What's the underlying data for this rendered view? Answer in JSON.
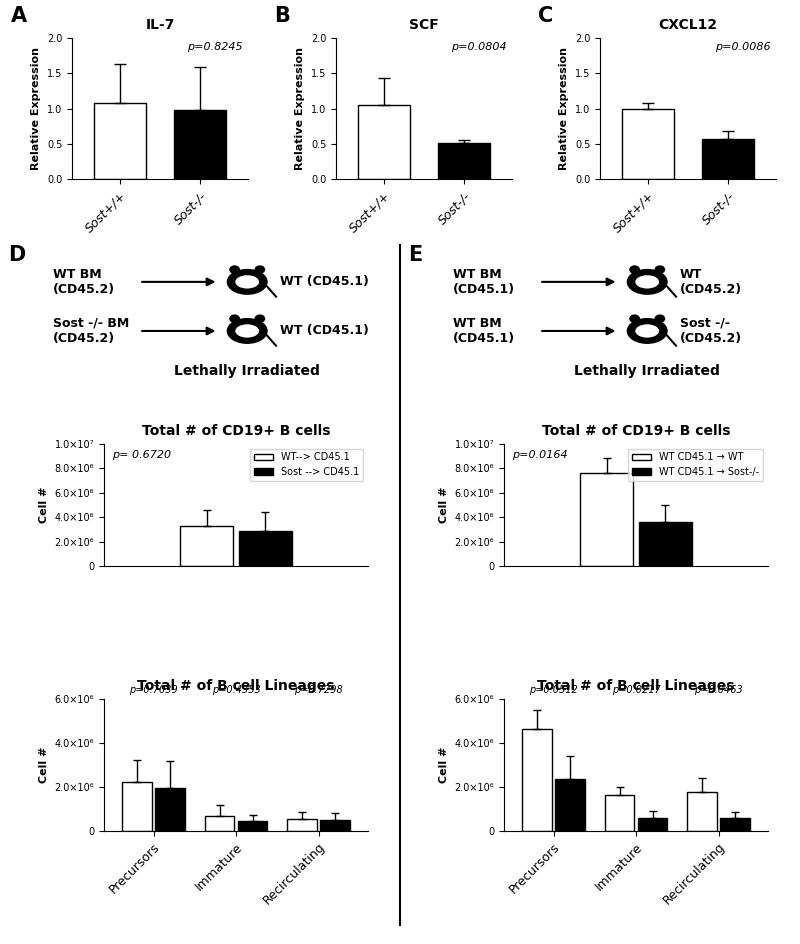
{
  "chart_data": [
    {
      "type": "bar",
      "label": "A",
      "title": "IL-7",
      "categories": [
        "Sost+/+",
        "Sost-/-"
      ],
      "values": [
        1.08,
        0.98
      ],
      "errors": [
        0.55,
        0.6
      ],
      "colors": [
        "#ffffff",
        "#000000"
      ],
      "y_label": "Relative Expression",
      "p_values": [
        "p=0.8245"
      ],
      "ylim": [
        0,
        2.0
      ],
      "yticks": [
        {
          "value": 0,
          "label": "0.0"
        },
        0.5,
        {
          "value": 1,
          "label": "1.0"
        },
        1.5,
        {
          "value": 2,
          "label": "2.0"
        }
      ]
    },
    {
      "type": "bar",
      "label": "B",
      "title": "SCF",
      "categories": [
        "Sost+/+",
        "Sost-/-"
      ],
      "values": [
        1.05,
        0.51
      ],
      "errors": [
        0.38,
        0.05
      ],
      "colors": [
        "#ffffff",
        "#000000"
      ],
      "y_label": "Relative Expression",
      "p_values": [
        "p=0.0804"
      ],
      "ylim": [
        0,
        2.0
      ],
      "yticks": [
        {
          "value": 0,
          "label": "0.0"
        },
        0.5,
        {
          "value": 1,
          "label": "1.0"
        },
        1.5,
        {
          "value": 2,
          "label": "2.0"
        }
      ]
    },
    {
      "type": "bar",
      "label": "C",
      "title": "CXCL12",
      "categories": [
        "Sost+/+",
        "Sost-/-"
      ],
      "values": [
        1.0,
        0.57
      ],
      "errors": [
        0.08,
        0.12
      ],
      "colors": [
        "#ffffff",
        "#000000"
      ],
      "y_label": "Relative Expression",
      "p_values": [
        "p=0.0086"
      ],
      "ylim": [
        0,
        2.0
      ],
      "yticks": [
        {
          "value": 0,
          "label": "0.0"
        },
        0.5,
        {
          "value": 1,
          "label": "1.0"
        },
        1.5,
        {
          "value": 2,
          "label": "2.0"
        }
      ]
    },
    {
      "type": "bar",
      "title": "Total # of CD19+ B cells",
      "categories": [
        null
      ],
      "series": [
        {
          "name": "WT--> CD45.1",
          "color": "#ffffff",
          "values": [
            3300000
          ],
          "errors": [
            1300000
          ]
        },
        {
          "name": "Sost --> CD45.1",
          "color": "#000000",
          "values": [
            2850000
          ],
          "errors": [
            1550000
          ]
        }
      ],
      "y_label": "Cell #",
      "p_values": [
        "p= 0.6720"
      ],
      "legend": "upper right",
      "tick_labels": "y",
      "ylim": [
        0,
        10000000
      ],
      "yticks": [
        0,
        {
          "value": 2000000,
          "label": "2.0×10⁶"
        },
        {
          "value": 4000000,
          "label": "4.0×10⁶"
        },
        {
          "value": 6000000,
          "label": "6.0×10⁶"
        },
        {
          "value": 8000000,
          "label": "8.0×10⁶"
        },
        {
          "value": 10000000,
          "label": "1.0×10⁷"
        }
      ]
    },
    {
      "type": "bar",
      "title": "Total # of B cell Lineages",
      "categories": [
        "Precursors",
        "Immature",
        "Recirculating"
      ],
      "series": [
        {
          "color": "#ffffff",
          "values": [
            2200000,
            650000,
            550000
          ],
          "errors": [
            1000000,
            500000,
            300000
          ]
        },
        {
          "color": "#000000",
          "values": [
            1950000,
            420000,
            470000
          ],
          "errors": [
            1200000,
            300000,
            350000
          ]
        }
      ],
      "y_label": "Cell #",
      "p_values": [
        "p=0.7039",
        "p=0.4353",
        "p=0.7298"
      ],
      "ylim": [
        0,
        6000000
      ],
      "yticks": [
        0,
        {
          "value": 2000000,
          "label": "2.0×10⁶"
        },
        {
          "value": 4000000,
          "label": "4.0×10⁶"
        },
        {
          "value": 6000000,
          "label": "6.0×10⁶"
        }
      ]
    },
    {
      "type": "bar",
      "title": "Total # of CD19+ B cells",
      "categories": [
        null
      ],
      "series": [
        {
          "name": "WT CD45.1 → WT",
          "color": "#ffffff",
          "values": [
            7600000
          ],
          "errors": [
            1200000
          ]
        },
        {
          "name": "WT CD45.1 → Sost-/-",
          "color": "#000000",
          "values": [
            3600000
          ],
          "errors": [
            1400000
          ]
        }
      ],
      "y_label": "Cell #",
      "p_values": [
        "p=0.0164"
      ],
      "legend": "upper right",
      "tick_labels": "y",
      "ylim": [
        0,
        10000000
      ],
      "yticks": [
        0,
        {
          "value": 2000000,
          "label": "2.0×10⁶"
        },
        {
          "value": 4000000,
          "label": "4.0×10⁶"
        },
        {
          "value": 6000000,
          "label": "6.0×10⁶"
        },
        {
          "value": 8000000,
          "label": "8.0×10⁶"
        },
        {
          "value": 10000000,
          "label": "1.0×10⁷"
        }
      ]
    },
    {
      "type": "bar",
      "title": "Total # of B cell Lineages",
      "categories": [
        "Precursors",
        "Immature",
        "Recirculating"
      ],
      "series": [
        {
          "color": "#ffffff",
          "values": [
            4600000,
            1600000,
            1750000
          ],
          "errors": [
            900000,
            400000,
            650000
          ]
        },
        {
          "color": "#000000",
          "values": [
            2350000,
            600000,
            600000
          ],
          "errors": [
            1050000,
            300000,
            250000
          ]
        }
      ],
      "y_label": "Cell #",
      "p_values": [
        "p=0.0512",
        "p=0.0217",
        "p=0.0463"
      ],
      "ylim": [
        0,
        6000000
      ],
      "yticks": [
        0,
        {
          "value": 2000000,
          "label": "2.0×10⁶"
        },
        {
          "value": 4000000,
          "label": "4.0×10⁶"
        },
        {
          "value": 6000000,
          "label": "6.0×10⁶"
        }
      ]
    }
  ],
  "diagrams": [
    {
      "label": "D",
      "rows": [
        {
          "donor": "WT BM\n(CD45.2)",
          "recipient": "WT (CD45.1)"
        },
        {
          "donor": "Sost -/- BM\n(CD45.2)",
          "recipient": "WT (CD45.1)"
        }
      ],
      "note": "Lethally Irradiated"
    },
    {
      "label": "E",
      "rows": [
        {
          "donor": "WT BM\n(CD45.1)",
          "recipient": "WT\n(CD45.2)"
        },
        {
          "donor": "WT BM\n(CD45.1)",
          "recipient": "Sost -/-\n(CD45.2)"
        }
      ],
      "note": "Lethally Irradiated"
    }
  ]
}
